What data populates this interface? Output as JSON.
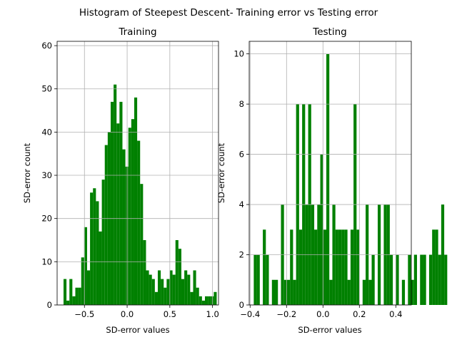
{
  "figure": {
    "title": "Histogram of Steepest Descent- Training error vs Testing error",
    "bar_color": "#008000",
    "grid_color": "#b0b0b0"
  },
  "chart_data": [
    {
      "type": "bar",
      "title": "Training",
      "xlabel": "SD-error values",
      "ylabel": "SD-error count",
      "xlim": [
        -0.82,
        1.07
      ],
      "ylim": [
        0,
        61
      ],
      "xticks": [
        -0.5,
        0.0,
        0.5,
        1.0
      ],
      "xtick_labels": [
        "−0.5",
        "0.0",
        "0.5",
        "1.0"
      ],
      "yticks": [
        0,
        10,
        20,
        30,
        40,
        50,
        60
      ],
      "ytick_labels": [
        "0",
        "10",
        "20",
        "30",
        "40",
        "50",
        "60"
      ],
      "grid": true,
      "bin_start": -0.745,
      "bin_width": 0.0345,
      "values": [
        6,
        1,
        6,
        2,
        4,
        4,
        11,
        18,
        8,
        26,
        27,
        24,
        17,
        29,
        37,
        40,
        47,
        51,
        42,
        47,
        36,
        32,
        41,
        43,
        48,
        38,
        28,
        15,
        8,
        7,
        6,
        3,
        8,
        6,
        4,
        6,
        8,
        7,
        15,
        13,
        6,
        8,
        7,
        3,
        8,
        4,
        2,
        1,
        2,
        2,
        2,
        3
      ]
    },
    {
      "type": "bar",
      "title": "Testing",
      "xlabel": "SD-error values",
      "ylabel": "SD-error count",
      "xlim": [
        -0.405,
        0.485
      ],
      "ylim": [
        0,
        10.5
      ],
      "xticks": [
        -0.4,
        -0.2,
        0.0,
        0.2,
        0.4
      ],
      "xtick_labels": [
        "−0.4",
        "−0.2",
        "0.0",
        "0.2",
        "0.4"
      ],
      "yticks": [
        0,
        2,
        4,
        6,
        8,
        10
      ],
      "ytick_labels": [
        "0",
        "2",
        "4",
        "6",
        "8",
        "10"
      ],
      "grid": true,
      "bin_start": -0.38,
      "bin_width": 0.0166,
      "values": [
        2,
        2,
        0,
        3,
        2,
        0,
        1,
        1,
        0,
        4,
        1,
        1,
        3,
        1,
        8,
        3,
        8,
        4,
        8,
        4,
        3,
        4,
        6,
        3,
        10,
        1,
        4,
        3,
        3,
        3,
        3,
        1,
        3,
        8,
        3,
        0,
        1,
        4,
        1,
        2,
        0,
        4,
        0,
        4,
        4,
        2,
        0,
        2,
        0,
        1,
        0,
        2,
        1,
        2,
        0,
        2,
        2,
        0,
        2,
        3,
        3,
        2,
        4,
        2,
        0,
        0
      ]
    }
  ]
}
